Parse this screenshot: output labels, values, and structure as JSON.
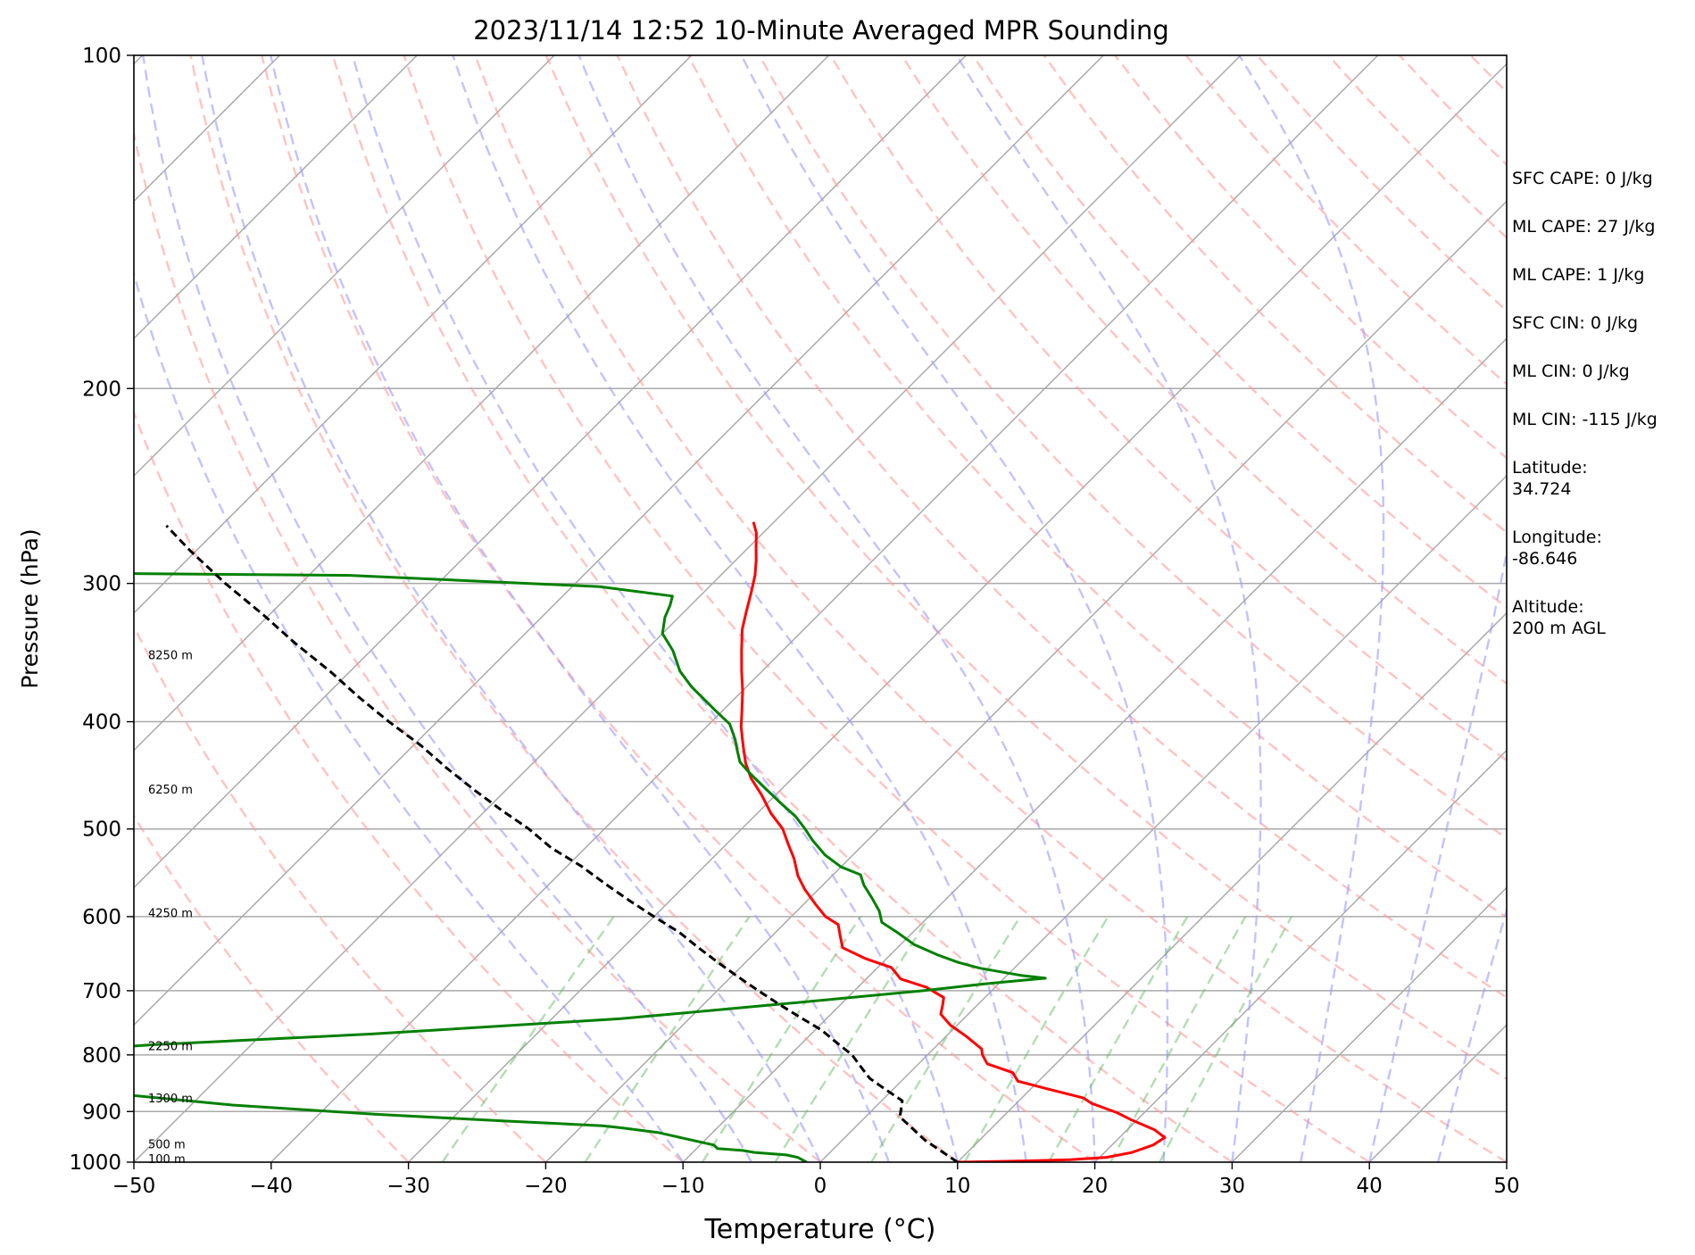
{
  "chart_data": {
    "type": "line",
    "title": "2023/11/14 12:52 10-Minute Averaged MPR Sounding",
    "xlabel": "Temperature (°C)",
    "ylabel": "Pressure (hPa)",
    "xlim": [
      -50,
      50
    ],
    "ylim": [
      1000,
      100
    ],
    "y_scale": "log",
    "skew": "skew-T log-P",
    "x_ticks": [
      "−50",
      "−40",
      "−30",
      "−20",
      "−10",
      "0",
      "10",
      "20",
      "30",
      "40",
      "50"
    ],
    "y_ticks": [
      "100",
      "200",
      "300",
      "400",
      "500",
      "600",
      "700",
      "800",
      "900",
      "1000"
    ],
    "height_labels": [
      "8250 m",
      "6250 m",
      "4250 m",
      "2250 m",
      "1300 m",
      "500 m",
      "100 m"
    ],
    "height_label_pressures": [
      348,
      460,
      595,
      785,
      875,
      963,
      993
    ],
    "grid": true,
    "series": [
      {
        "color": "#ff0000",
        "points": [
          [
            10,
            1000
          ],
          [
            14,
            998
          ],
          [
            18,
            995
          ],
          [
            20.5,
            990
          ],
          [
            22,
            980
          ],
          [
            23,
            965
          ],
          [
            23.3,
            950
          ],
          [
            22,
            935
          ],
          [
            19.5,
            915
          ],
          [
            18,
            902
          ],
          [
            15.5,
            885
          ],
          [
            14.5,
            875
          ],
          [
            11.5,
            860
          ],
          [
            8.5,
            845
          ],
          [
            7.5,
            830
          ],
          [
            5,
            815
          ],
          [
            4,
            800
          ],
          [
            3.5,
            790
          ],
          [
            1.5,
            770
          ],
          [
            -0.5,
            752
          ],
          [
            -2,
            735
          ],
          [
            -2.5,
            722
          ],
          [
            -3,
            710
          ],
          [
            -5,
            695
          ],
          [
            -7.5,
            683
          ],
          [
            -9,
            667
          ],
          [
            -11.5,
            655
          ],
          [
            -14,
            640
          ],
          [
            -15,
            625
          ],
          [
            -16,
            610
          ],
          [
            -17.5,
            600
          ],
          [
            -19,
            586
          ],
          [
            -21,
            567
          ],
          [
            -22.5,
            551
          ],
          [
            -24,
            532
          ],
          [
            -25.5,
            516
          ],
          [
            -27,
            500
          ],
          [
            -29,
            484
          ],
          [
            -31,
            466
          ],
          [
            -33,
            450
          ],
          [
            -34.5,
            436
          ],
          [
            -36,
            420
          ],
          [
            -37.5,
            404
          ],
          [
            -38.5,
            392
          ],
          [
            -40,
            375
          ],
          [
            -41.5,
            360
          ],
          [
            -43,
            345
          ],
          [
            -44.5,
            330
          ],
          [
            -45.5,
            318
          ],
          [
            -46.5,
            306
          ],
          [
            -47.5,
            295
          ],
          [
            -48.5,
            286
          ],
          [
            -49.5,
            278
          ],
          [
            -50.5,
            270
          ],
          [
            -51.5,
            264
          ]
        ]
      },
      {
        "color": "#008000",
        "points": [
          [
            -1,
            1000
          ],
          [
            -2,
            990
          ],
          [
            -3,
            985
          ],
          [
            -5.5,
            980
          ],
          [
            -6.5,
            976
          ],
          [
            -8.5,
            972
          ],
          [
            -9,
            965
          ],
          [
            -11,
            955
          ],
          [
            -14,
            940
          ],
          [
            -17,
            931
          ],
          [
            -18.5,
            927
          ],
          [
            -26,
            918
          ],
          [
            -36,
            905
          ],
          [
            -47,
            888
          ],
          [
            -56,
            868
          ],
          [
            -60,
            857
          ],
          [
            -60,
            852
          ],
          [
            -57,
            838
          ],
          [
            -60,
            830
          ],
          [
            -63,
            820
          ],
          [
            -63,
            810
          ],
          [
            -65,
            796
          ],
          [
            -57,
            783
          ],
          [
            -42,
            766
          ],
          [
            -25,
            742
          ],
          [
            -14,
            719
          ],
          [
            -5,
            700
          ],
          [
            -1,
            690
          ],
          [
            3,
            682
          ],
          [
            1,
            678
          ],
          [
            -2.5,
            668
          ],
          [
            -4.5,
            660
          ],
          [
            -6.5,
            650
          ],
          [
            -9,
            636
          ],
          [
            -11,
            621
          ],
          [
            -13,
            607
          ],
          [
            -14,
            593
          ],
          [
            -15.5,
            577
          ],
          [
            -17,
            562
          ],
          [
            -18,
            550
          ],
          [
            -20,
            541
          ],
          [
            -22,
            528
          ],
          [
            -24,
            512
          ],
          [
            -25.5,
            499
          ],
          [
            -27,
            487
          ],
          [
            -29,
            474
          ],
          [
            -31,
            461
          ],
          [
            -33.5,
            445
          ],
          [
            -35,
            435
          ],
          [
            -36,
            425
          ],
          [
            -37,
            415
          ],
          [
            -38.5,
            402
          ],
          [
            -40.5,
            391
          ],
          [
            -42.5,
            380
          ],
          [
            -44,
            372
          ],
          [
            -46,
            360
          ],
          [
            -48,
            345
          ],
          [
            -50,
            333
          ],
          [
            -51,
            322
          ],
          [
            -51.5,
            314
          ],
          [
            -52,
            308
          ],
          [
            -58,
            302
          ],
          [
            -77,
            295
          ],
          [
            -106,
            293
          ]
        ]
      },
      {
        "color": "#000000",
        "dashed": true,
        "points": [
          [
            10,
            1000
          ],
          [
            6,
            955
          ],
          [
            2.5,
            910
          ],
          [
            1.5,
            880
          ],
          [
            -0.5,
            860
          ],
          [
            -2.5,
            840
          ],
          [
            -4,
            820
          ],
          [
            -5.5,
            800
          ],
          [
            -7.5,
            780
          ],
          [
            -9.5,
            760
          ],
          [
            -12,
            740
          ],
          [
            -14.5,
            720
          ],
          [
            -17,
            700
          ],
          [
            -19.5,
            680
          ],
          [
            -22,
            660
          ],
          [
            -24.5,
            640
          ],
          [
            -27,
            620
          ],
          [
            -30,
            600
          ],
          [
            -33,
            580
          ],
          [
            -36,
            560
          ],
          [
            -39,
            540
          ],
          [
            -42.5,
            520
          ],
          [
            -45.5,
            500
          ],
          [
            -49,
            480
          ],
          [
            -52.5,
            460
          ],
          [
            -56,
            440
          ],
          [
            -59.5,
            420
          ],
          [
            -63.5,
            400
          ],
          [
            -67.5,
            380
          ],
          [
            -71.5,
            360
          ],
          [
            -76,
            340
          ],
          [
            -80.5,
            320
          ],
          [
            -85.5,
            300
          ],
          [
            -90.5,
            280
          ],
          [
            -94,
            266
          ]
        ]
      }
    ]
  },
  "stats": [
    "SFC CAPE: 0 J/kg",
    "ML CAPE: 27 J/kg",
    "ML CAPE: 1 J/kg",
    "SFC CIN: 0 J/kg",
    "ML CIN: 0 J/kg",
    "ML CIN: -115 J/kg"
  ],
  "location": {
    "latitude_label": "Latitude:",
    "latitude_value": "34.724",
    "longitude_label": "Longitude:",
    "longitude_value": "-86.646",
    "altitude_label": "Altitude:",
    "altitude_value": "200 m AGL"
  }
}
